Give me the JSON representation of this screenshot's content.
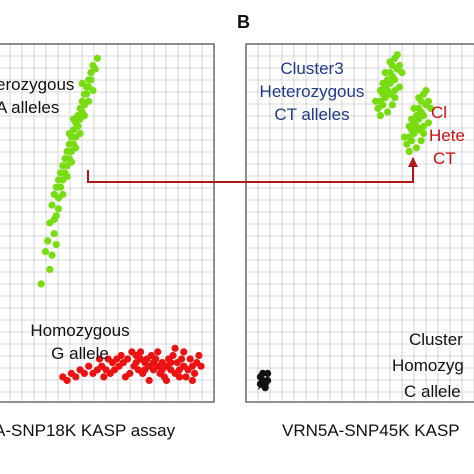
{
  "colors": {
    "green": "#77dd11",
    "red": "#ee1111",
    "black": "#111111",
    "blue_text": "#1f3a8a",
    "red_text": "#cc1111",
    "arrow": "#b01818",
    "grid": "#b8b8b8",
    "frame": "#6a6a6a"
  },
  "chart_data": [
    {
      "type": "scatter",
      "panel_letter": "",
      "caption": "A-SNP18K KASP assay",
      "xlim": [
        0,
        1
      ],
      "ylim": [
        0,
        1
      ],
      "grid": true,
      "annotations": [
        {
          "lines": [
            "erozygous",
            "A alleles"
          ],
          "color": "#111111"
        },
        {
          "lines": [
            "Homozygous",
            "G allele"
          ],
          "color": "#111111"
        }
      ],
      "series": [
        {
          "color": "#77dd11",
          "points": [
            [
              0.44,
              0.94
            ],
            [
              0.43,
              0.92
            ],
            [
              0.42,
              0.9
            ],
            [
              0.41,
              0.88
            ],
            [
              0.4,
              0.86
            ],
            [
              0.39,
              0.84
            ],
            [
              0.38,
              0.82
            ],
            [
              0.37,
              0.8
            ],
            [
              0.36,
              0.78
            ],
            [
              0.35,
              0.76
            ],
            [
              0.34,
              0.74
            ],
            [
              0.33,
              0.72
            ],
            [
              0.32,
              0.7
            ],
            [
              0.31,
              0.68
            ],
            [
              0.3,
              0.66
            ],
            [
              0.29,
              0.64
            ],
            [
              0.28,
              0.62
            ],
            [
              0.27,
              0.6
            ],
            [
              0.42,
              0.88
            ],
            [
              0.4,
              0.83
            ],
            [
              0.38,
              0.79
            ],
            [
              0.36,
              0.74
            ],
            [
              0.34,
              0.7
            ],
            [
              0.32,
              0.66
            ],
            [
              0.3,
              0.62
            ],
            [
              0.41,
              0.86
            ],
            [
              0.39,
              0.81
            ],
            [
              0.37,
              0.77
            ],
            [
              0.35,
              0.72
            ],
            [
              0.33,
              0.68
            ],
            [
              0.31,
              0.64
            ],
            [
              0.29,
              0.6
            ],
            [
              0.43,
              0.9
            ],
            [
              0.26,
              0.58
            ],
            [
              0.28,
              0.57
            ],
            [
              0.25,
              0.55
            ],
            [
              0.27,
              0.52
            ],
            [
              0.24,
              0.5
            ],
            [
              0.26,
              0.47
            ],
            [
              0.23,
              0.45
            ],
            [
              0.46,
              0.96
            ],
            [
              0.45,
              0.93
            ],
            [
              0.44,
              0.87
            ],
            [
              0.42,
              0.84
            ],
            [
              0.4,
              0.8
            ],
            [
              0.38,
              0.75
            ],
            [
              0.36,
              0.71
            ],
            [
              0.34,
              0.67
            ],
            [
              0.32,
              0.63
            ],
            [
              0.3,
              0.58
            ],
            [
              0.28,
              0.54
            ],
            [
              0.26,
              0.51
            ],
            [
              0.27,
              0.44
            ],
            [
              0.25,
              0.41
            ],
            [
              0.22,
              0.42
            ],
            [
              0.24,
              0.37
            ],
            [
              0.2,
              0.33
            ],
            [
              0.35,
              0.79
            ],
            [
              0.33,
              0.75
            ],
            [
              0.39,
              0.89
            ]
          ]
        },
        {
          "color": "#ee1111",
          "points": [
            [
              0.62,
              0.14
            ],
            [
              0.64,
              0.13
            ],
            [
              0.66,
              0.12
            ],
            [
              0.68,
              0.11
            ],
            [
              0.7,
              0.1
            ],
            [
              0.72,
              0.09
            ],
            [
              0.74,
              0.1
            ],
            [
              0.76,
              0.11
            ],
            [
              0.78,
              0.1
            ],
            [
              0.8,
              0.09
            ],
            [
              0.82,
              0.08
            ],
            [
              0.84,
              0.09
            ],
            [
              0.86,
              0.1
            ],
            [
              0.88,
              0.09
            ],
            [
              0.9,
              0.1
            ],
            [
              0.92,
              0.11
            ],
            [
              0.94,
              0.1
            ],
            [
              0.6,
              0.12
            ],
            [
              0.58,
              0.11
            ],
            [
              0.56,
              0.1
            ],
            [
              0.54,
              0.09
            ],
            [
              0.52,
              0.08
            ],
            [
              0.5,
              0.09
            ],
            [
              0.48,
              0.1
            ],
            [
              0.46,
              0.09
            ],
            [
              0.44,
              0.08
            ],
            [
              0.63,
              0.1
            ],
            [
              0.65,
              0.09
            ],
            [
              0.67,
              0.08
            ],
            [
              0.69,
              0.12
            ],
            [
              0.71,
              0.13
            ],
            [
              0.73,
              0.12
            ],
            [
              0.75,
              0.08
            ],
            [
              0.77,
              0.07
            ],
            [
              0.79,
              0.12
            ],
            [
              0.81,
              0.13
            ],
            [
              0.83,
              0.11
            ],
            [
              0.85,
              0.12
            ],
            [
              0.87,
              0.07
            ],
            [
              0.89,
              0.12
            ],
            [
              0.91,
              0.08
            ],
            [
              0.93,
              0.13
            ],
            [
              0.57,
              0.13
            ],
            [
              0.55,
              0.12
            ],
            [
              0.53,
              0.11
            ],
            [
              0.51,
              0.12
            ],
            [
              0.49,
              0.07
            ],
            [
              0.47,
              0.12
            ],
            [
              0.42,
              0.1
            ],
            [
              0.4,
              0.08
            ],
            [
              0.38,
              0.09
            ],
            [
              0.36,
              0.07
            ],
            [
              0.34,
              0.08
            ],
            [
              0.32,
              0.06
            ],
            [
              0.3,
              0.07
            ],
            [
              0.61,
              0.08
            ],
            [
              0.59,
              0.07
            ],
            [
              0.66,
              0.14
            ],
            [
              0.74,
              0.14
            ],
            [
              0.82,
              0.15
            ],
            [
              0.7,
              0.06
            ],
            [
              0.78,
              0.06
            ],
            [
              0.86,
              0.14
            ],
            [
              0.9,
              0.06
            ],
            [
              0.72,
              0.11
            ],
            [
              0.76,
              0.09
            ],
            [
              0.8,
              0.11
            ],
            [
              0.84,
              0.07
            ],
            [
              0.68,
              0.09
            ],
            [
              0.64,
              0.11
            ]
          ]
        }
      ]
    },
    {
      "type": "scatter",
      "panel_letter": "B",
      "caption": "VRN5A-SNP45K KASP",
      "xlim": [
        0,
        1
      ],
      "ylim": [
        0,
        1
      ],
      "grid": true,
      "annotations": [
        {
          "lines": [
            "Cluster3",
            "Heterozygous",
            "CT alleles"
          ],
          "color": "#1f3a8a"
        },
        {
          "lines": [
            "Cl",
            "Hete",
            "CT"
          ],
          "color": "#cc1111"
        },
        {
          "lines": [
            "Cluster",
            "Homozyg",
            "C allele"
          ],
          "color": "#111111"
        }
      ],
      "markers": [
        {
          "symbol": "×",
          "x": 0.03,
          "y": 0.08,
          "color": "#111111"
        }
      ],
      "series": [
        {
          "color": "#77dd11",
          "points": [
            [
              0.62,
              0.96
            ],
            [
              0.61,
              0.94
            ],
            [
              0.6,
              0.92
            ],
            [
              0.59,
              0.9
            ],
            [
              0.58,
              0.88
            ],
            [
              0.57,
              0.86
            ],
            [
              0.56,
              0.84
            ],
            [
              0.6,
              0.89
            ],
            [
              0.61,
              0.91
            ],
            [
              0.63,
              0.93
            ],
            [
              0.58,
              0.85
            ],
            [
              0.57,
              0.83
            ],
            [
              0.59,
              0.87
            ],
            [
              0.62,
              0.9
            ],
            [
              0.64,
              0.94
            ],
            [
              0.55,
              0.82
            ],
            [
              0.56,
              0.8
            ],
            [
              0.6,
              0.86
            ],
            [
              0.63,
              0.97
            ],
            [
              0.58,
              0.92
            ],
            [
              0.62,
              0.87
            ],
            [
              0.54,
              0.84
            ],
            [
              0.61,
              0.83
            ],
            [
              0.59,
              0.81
            ],
            [
              0.57,
              0.89
            ],
            [
              0.65,
              0.92
            ],
            [
              0.64,
              0.88
            ],
            [
              0.6,
              0.95
            ],
            [
              0.56,
              0.87
            ],
            [
              0.62,
              0.85
            ],
            [
              0.74,
              0.86
            ],
            [
              0.73,
              0.84
            ],
            [
              0.72,
              0.82
            ],
            [
              0.71,
              0.8
            ],
            [
              0.7,
              0.78
            ],
            [
              0.69,
              0.76
            ],
            [
              0.68,
              0.74
            ],
            [
              0.72,
              0.79
            ],
            [
              0.73,
              0.81
            ],
            [
              0.75,
              0.83
            ],
            [
              0.7,
              0.75
            ],
            [
              0.69,
              0.73
            ],
            [
              0.71,
              0.77
            ],
            [
              0.74,
              0.8
            ],
            [
              0.76,
              0.84
            ],
            [
              0.67,
              0.72
            ],
            [
              0.68,
              0.7
            ],
            [
              0.72,
              0.76
            ],
            [
              0.75,
              0.87
            ],
            [
              0.7,
              0.82
            ],
            [
              0.74,
              0.77
            ],
            [
              0.66,
              0.74
            ],
            [
              0.73,
              0.73
            ],
            [
              0.71,
              0.71
            ],
            [
              0.69,
              0.79
            ],
            [
              0.77,
              0.82
            ],
            [
              0.76,
              0.78
            ],
            [
              0.72,
              0.85
            ],
            [
              0.68,
              0.77
            ],
            [
              0.74,
              0.75
            ]
          ]
        },
        {
          "color": "#111111",
          "points": [
            [
              0.06,
              0.07
            ],
            [
              0.07,
              0.06
            ],
            [
              0.08,
              0.05
            ],
            [
              0.07,
              0.08
            ],
            [
              0.09,
              0.06
            ],
            [
              0.08,
              0.04
            ],
            [
              0.06,
              0.05
            ],
            [
              0.09,
              0.08
            ]
          ]
        }
      ]
    }
  ]
}
